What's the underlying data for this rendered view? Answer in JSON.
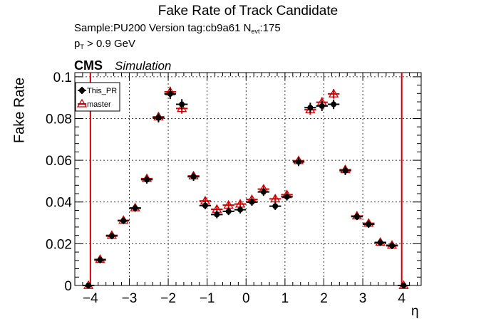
{
  "header": {
    "title": "Fake Rate of Track Candidate",
    "sample_line": "Sample:PU200   Version tag:cb9a61  N",
    "sample_sub": "evt",
    "sample_tail": ":175",
    "pt_prefix": "p",
    "pt_sub": "T",
    "pt_tail": " > 0.9 GeV",
    "cms": "CMS",
    "simulation": "Simulation"
  },
  "chart_data": {
    "type": "scatter",
    "xlabel": "η",
    "ylabel": "Fake Rate",
    "xlim": [
      -4.4,
      4.5
    ],
    "ylim": [
      0,
      0.102
    ],
    "x_ticks": [
      -4,
      -3,
      -2,
      -1,
      0,
      1,
      2,
      3,
      4
    ],
    "x_tick_labels": [
      "−4",
      "−3",
      "−2",
      "−1",
      "0",
      "1",
      "2",
      "3",
      "4"
    ],
    "y_ticks": [
      0,
      0.02,
      0.04,
      0.06,
      0.08,
      0.1
    ],
    "y_tick_labels": [
      "0",
      "0.02",
      "0.04",
      "0.06",
      "0.08",
      "0.1"
    ],
    "grid": true,
    "legend_position": "top-left",
    "vertical_lines": [
      -4.0,
      4.0
    ],
    "vertical_line_color": "#d40000",
    "x_bin_halfwidth": 0.15,
    "x": [
      -4.05,
      -3.75,
      -3.45,
      -3.15,
      -2.85,
      -2.55,
      -2.25,
      -1.95,
      -1.65,
      -1.35,
      -1.05,
      -0.75,
      -0.45,
      -0.15,
      0.15,
      0.45,
      0.75,
      1.05,
      1.35,
      1.65,
      1.95,
      2.25,
      2.55,
      2.85,
      3.15,
      3.45,
      3.75,
      4.05
    ],
    "series": [
      {
        "name": "This_PR",
        "color": "#000000",
        "marker": "circle",
        "values": [
          0,
          0.0122,
          0.0237,
          0.031,
          0.037,
          0.0507,
          0.0803,
          0.0918,
          0.0868,
          0.0521,
          0.0383,
          0.034,
          0.0355,
          0.0363,
          0.04,
          0.0448,
          0.038,
          0.0425,
          0.0592,
          0.0852,
          0.086,
          0.0868,
          0.055,
          0.033,
          0.0293,
          0.0205,
          0.019,
          0
        ],
        "errors": [
          0,
          0.0009,
          0.0009,
          0.0009,
          0.001,
          0.0012,
          0.0015,
          0.0018,
          0.0018,
          0.0013,
          0.0011,
          0.0011,
          0.0011,
          0.0011,
          0.0011,
          0.0012,
          0.0011,
          0.0011,
          0.0013,
          0.0017,
          0.0017,
          0.0016,
          0.0014,
          0.001,
          0.001,
          0.0009,
          0.0009,
          0
        ]
      },
      {
        "name": "master",
        "color": "#d40000",
        "marker": "triangle-open",
        "values": [
          0,
          0.0125,
          0.024,
          0.0312,
          0.0372,
          0.0512,
          0.0808,
          0.0928,
          0.0848,
          0.0525,
          0.0405,
          0.0365,
          0.0385,
          0.039,
          0.0412,
          0.0462,
          0.0415,
          0.0435,
          0.0598,
          0.0842,
          0.0878,
          0.0918,
          0.0555,
          0.0333,
          0.0298,
          0.0207,
          0.0193,
          0
        ],
        "errors": [
          0,
          0.0009,
          0.0009,
          0.0009,
          0.001,
          0.0012,
          0.0015,
          0.0018,
          0.0018,
          0.0013,
          0.0011,
          0.0011,
          0.0011,
          0.0011,
          0.0011,
          0.0012,
          0.0011,
          0.0011,
          0.0013,
          0.0017,
          0.0017,
          0.0016,
          0.0014,
          0.001,
          0.001,
          0.0009,
          0.0009,
          0
        ]
      }
    ]
  }
}
